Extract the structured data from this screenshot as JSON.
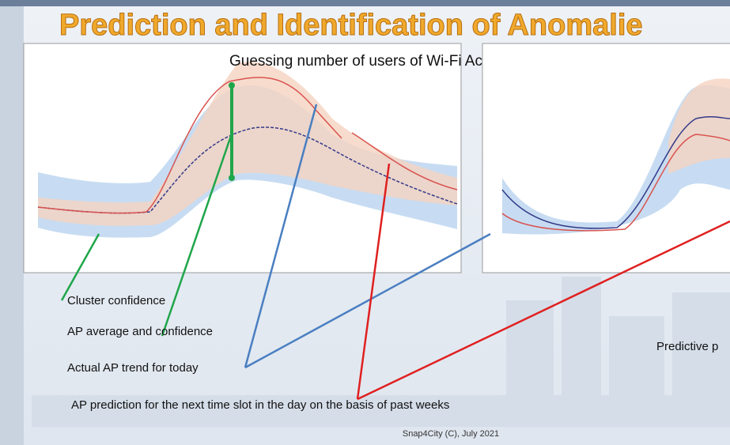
{
  "slide": {
    "title": "Prediction and Identification of Anomalie",
    "chart_title": "Guessing number of users of Wi-Fi Access Points",
    "labels": [
      "Cluster confidence",
      "AP average and confidence",
      "Actual AP trend for today",
      "AP prediction for the next time slot in the day on the basis of past weeks"
    ],
    "side_label": "Predictive p",
    "footer": "Snap4City (C), July 2021"
  }
}
